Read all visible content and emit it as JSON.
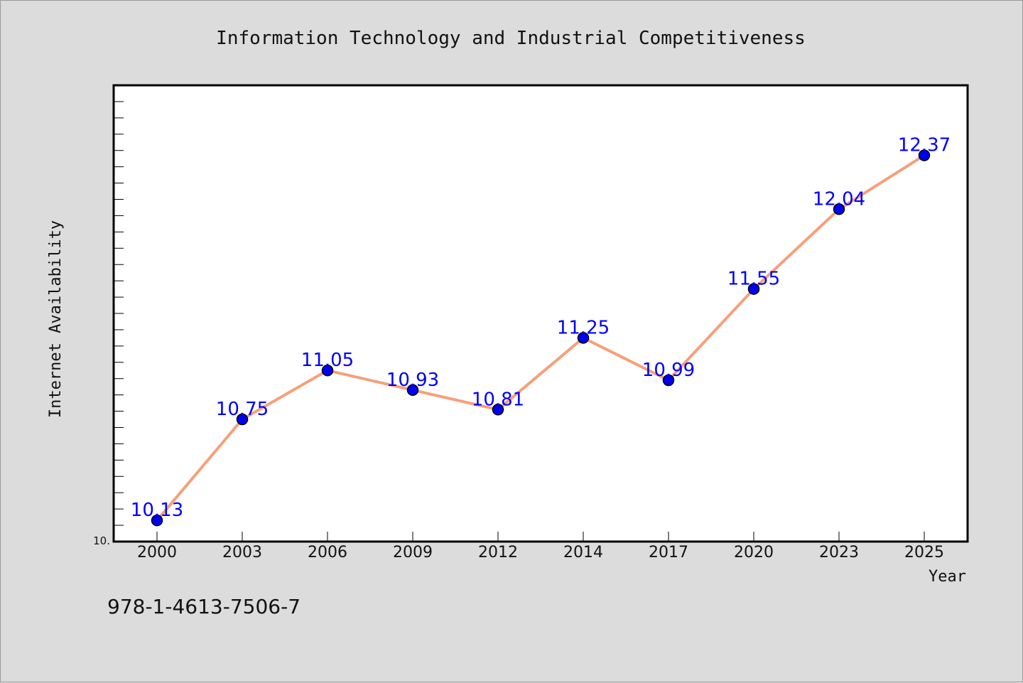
{
  "chart_data": {
    "type": "line",
    "title": "Information Technology and Industrial Competitiveness",
    "xlabel": "Year",
    "ylabel": "Internet Availability",
    "categories": [
      "2000",
      "2003",
      "2006",
      "2009",
      "2012",
      "2014",
      "2017",
      "2020",
      "2023",
      "2025"
    ],
    "series": [
      {
        "values": [
          10.13,
          10.75,
          11.05,
          10.93,
          10.81,
          11.25,
          10.99,
          11.55,
          12.04,
          12.37
        ],
        "labels": [
          "10.13",
          "10.75",
          "11.05",
          "10.93",
          "10.81",
          "11.25",
          "10.99",
          "11.55",
          "12.04",
          "12.37"
        ],
        "line_color": "#f5a07a",
        "marker_color": "#0000ee"
      }
    ],
    "ylim": [
      10.0,
      12.8
    ],
    "y_tick_label": "10.",
    "grid": false,
    "legend": "none"
  },
  "footer_text": "978-1-4613-7506-7",
  "colors": {
    "background": "#dcdcdc",
    "plot_background": "#ffffff",
    "data_label": "#0000ff"
  }
}
